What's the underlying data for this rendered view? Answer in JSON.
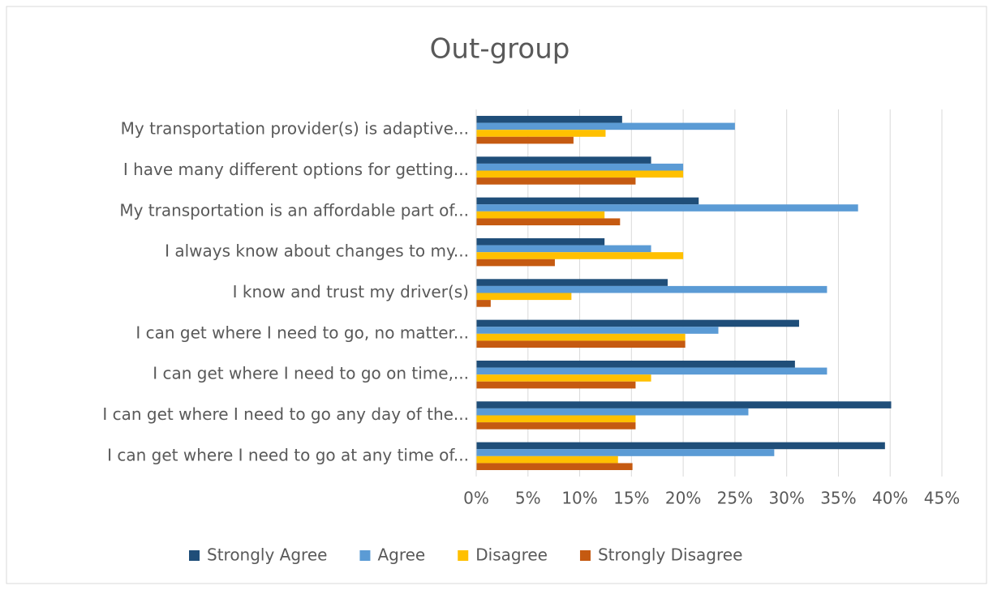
{
  "chart_data": {
    "type": "barh",
    "title": "Out-group",
    "categories": [
      "My transportation provider(s) is adaptive...",
      "I have many different options for getting...",
      "My transportation is an affordable part of...",
      "I always know about changes to my...",
      "I know and trust my driver(s)",
      "I can get where I need to go, no matter...",
      "I can get where I need to go on time,...",
      "I can get where I need to go any day of the...",
      "I can get where I need to go at any time of..."
    ],
    "series": [
      {
        "name": "Strongly Agree",
        "color": "#1f4e79",
        "values": [
          14.1,
          16.9,
          21.5,
          12.4,
          18.5,
          31.2,
          30.8,
          40.1,
          39.5
        ]
      },
      {
        "name": "Agree",
        "color": "#5b9bd5",
        "values": [
          25,
          20,
          36.9,
          16.9,
          33.9,
          23.4,
          33.9,
          26.3,
          28.8
        ]
      },
      {
        "name": "Disagree",
        "color": "#ffc000",
        "values": [
          12.5,
          20,
          12.4,
          20,
          9.2,
          20.2,
          16.9,
          15.4,
          13.7
        ]
      },
      {
        "name": "Strongly Disagree",
        "color": "#c55a11",
        "values": [
          9.4,
          15.4,
          13.9,
          7.6,
          1.4,
          20.2,
          15.4,
          15.4,
          15.1
        ]
      }
    ],
    "xlim": [
      0,
      45
    ],
    "xticks": [
      {
        "value": 0,
        "label": "0%"
      },
      {
        "value": 5,
        "label": "5%"
      },
      {
        "value": 10,
        "label": "10%"
      },
      {
        "value": 15,
        "label": "15%"
      },
      {
        "value": 20,
        "label": "20%"
      },
      {
        "value": 25,
        "label": "25%"
      },
      {
        "value": 30,
        "label": "30%"
      },
      {
        "value": 35,
        "label": "35%"
      },
      {
        "value": 40,
        "label": "40%"
      },
      {
        "value": 45,
        "label": "45%"
      }
    ],
    "grid": true,
    "legend": "bottom"
  }
}
